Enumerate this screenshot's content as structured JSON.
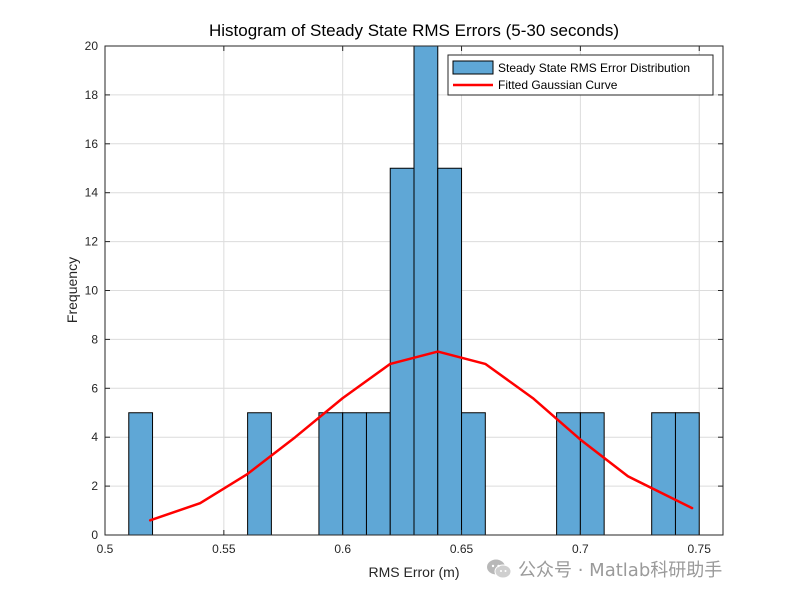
{
  "chart_data": {
    "type": "bar",
    "title": "Histogram of Steady State RMS Errors (5-30 seconds)",
    "xlabel": "RMS Error (m)",
    "ylabel": "Frequency",
    "xlim": [
      0.5,
      0.76
    ],
    "ylim": [
      0,
      20
    ],
    "xticks": [
      0.5,
      0.55,
      0.6,
      0.65,
      0.7,
      0.75
    ],
    "xtick_labels": [
      "0.5",
      "0.55",
      "0.6",
      "0.65",
      "0.7",
      "0.75"
    ],
    "yticks": [
      0,
      2,
      4,
      6,
      8,
      10,
      12,
      14,
      16,
      18,
      20
    ],
    "ytick_labels": [
      "0",
      "2",
      "4",
      "6",
      "8",
      "10",
      "12",
      "14",
      "16",
      "18",
      "20"
    ],
    "grid": true,
    "legend_position": "top-right",
    "bin_width": 0.01,
    "bins": [
      {
        "start": 0.51,
        "end": 0.52,
        "count": 5
      },
      {
        "start": 0.56,
        "end": 0.57,
        "count": 5
      },
      {
        "start": 0.59,
        "end": 0.6,
        "count": 5
      },
      {
        "start": 0.6,
        "end": 0.61,
        "count": 5
      },
      {
        "start": 0.61,
        "end": 0.62,
        "count": 5
      },
      {
        "start": 0.62,
        "end": 0.63,
        "count": 15
      },
      {
        "start": 0.63,
        "end": 0.64,
        "count": 20
      },
      {
        "start": 0.64,
        "end": 0.65,
        "count": 15
      },
      {
        "start": 0.65,
        "end": 0.66,
        "count": 5
      },
      {
        "start": 0.69,
        "end": 0.7,
        "count": 5
      },
      {
        "start": 0.7,
        "end": 0.71,
        "count": 5
      },
      {
        "start": 0.73,
        "end": 0.74,
        "count": 5
      },
      {
        "start": 0.74,
        "end": 0.75,
        "count": 5
      }
    ],
    "series": [
      {
        "name": "Steady State RMS Error Distribution",
        "kind": "histogram",
        "color": "#5fa7d6"
      },
      {
        "name": "Fitted Gaussian Curve",
        "kind": "line",
        "color": "#ff0000",
        "x": [
          0.519,
          0.54,
          0.56,
          0.58,
          0.6,
          0.62,
          0.64,
          0.66,
          0.68,
          0.7,
          0.72,
          0.747
        ],
        "y": [
          0.6,
          1.3,
          2.5,
          4.0,
          5.6,
          7.0,
          7.5,
          7.0,
          5.6,
          3.9,
          2.4,
          1.1
        ]
      }
    ]
  },
  "watermark": {
    "text": "公众号 · Matlab科研助手",
    "icon": "wechat-icon"
  }
}
